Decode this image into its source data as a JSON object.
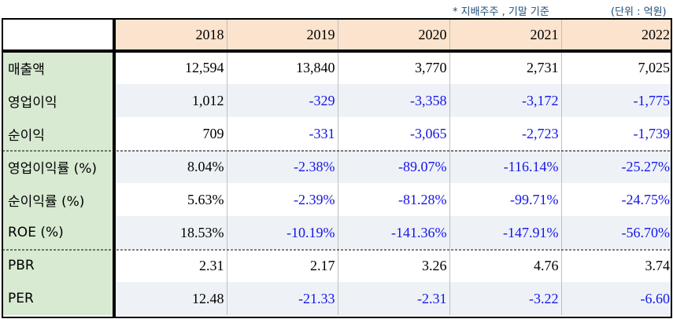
{
  "notes": {
    "basis": "* 지배주주 , 기말 기준",
    "unit": "(단위 : 억원)"
  },
  "colors": {
    "header_bg": "#fbe3cd",
    "label_bg": "#d8ead2",
    "shade_row_bg": "#eef2f7",
    "negative_text": "#1515e8"
  },
  "table": {
    "years": [
      "2018",
      "2019",
      "2020",
      "2021",
      "2022"
    ],
    "rows": [
      {
        "label": "매출액",
        "values": [
          "12,594",
          "13,840",
          "3,770",
          "2,731",
          "7,025"
        ]
      },
      {
        "label": "영업이익",
        "values": [
          "1,012",
          "-329",
          "-3,358",
          "-3,172",
          "-1,775"
        ]
      },
      {
        "label": "순이익",
        "values": [
          "709",
          "-331",
          "-3,065",
          "-2,723",
          "-1,739"
        ]
      },
      {
        "label": "영업이익률 (%)",
        "values": [
          "8.04%",
          "-2.38%",
          "-89.07%",
          "-116.14%",
          "-25.27%"
        ]
      },
      {
        "label": "순이익률 (%)",
        "values": [
          "5.63%",
          "-2.39%",
          "-81.28%",
          "-99.71%",
          "-24.75%"
        ]
      },
      {
        "label": "ROE (%)",
        "values": [
          "18.53%",
          "-10.19%",
          "-141.36%",
          "-147.91%",
          "-56.70%"
        ]
      },
      {
        "label": "PBR",
        "values": [
          "2.31",
          "2.17",
          "3.26",
          "4.76",
          "3.74"
        ]
      },
      {
        "label": "PER",
        "values": [
          "12.48",
          "-21.33",
          "-2.31",
          "-3.22",
          "-6.60"
        ]
      }
    ]
  }
}
